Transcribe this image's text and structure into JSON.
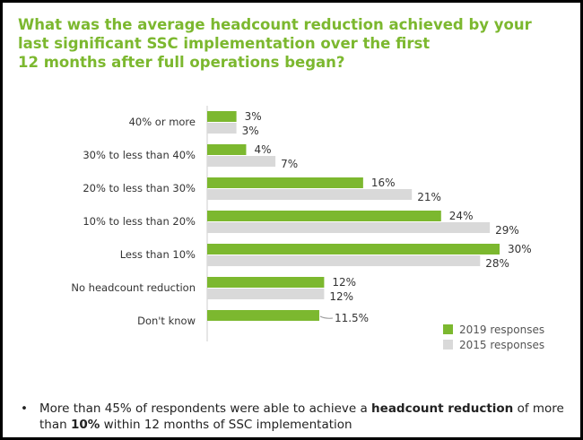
{
  "title_lines": [
    "What was the average headcount reduction achieved by your",
    "last significant SSC implementation over the first",
    "12 months after full operations began?"
  ],
  "chart_data": {
    "type": "bar",
    "orientation": "horizontal",
    "categories": [
      "40% or more",
      "30% to less than 40%",
      "20% to less than 30%",
      "10% to less than 20%",
      "Less than 10%",
      "No headcount reduction",
      "Don't know"
    ],
    "series": [
      {
        "name": "2019 responses",
        "color": "#7cb82f",
        "values": [
          3,
          4,
          16,
          24,
          30,
          12,
          11.5
        ],
        "labels": [
          "3%",
          "4%",
          "16%",
          "24%",
          "30%",
          "12%",
          "11.5%"
        ]
      },
      {
        "name": "2015 responses",
        "color": "#d9d9d9",
        "values": [
          3,
          7,
          21,
          29,
          28,
          12,
          null
        ],
        "labels": [
          "3%",
          "7%",
          "21%",
          "29%",
          "28%",
          "12%",
          ""
        ]
      }
    ],
    "xlim": [
      0,
      30
    ],
    "grid": false,
    "legend_position": "bottom-right"
  },
  "note": {
    "bullet": "•",
    "parts": [
      {
        "text": "More than 45% of respondents were able to achieve a ",
        "bold": false
      },
      {
        "text": "headcount reduction",
        "bold": true
      },
      {
        "text": " of more than ",
        "bold": false
      },
      {
        "text": "10%",
        "bold": true
      },
      {
        "text": " within 12 months of SSC implementation",
        "bold": false
      }
    ]
  }
}
